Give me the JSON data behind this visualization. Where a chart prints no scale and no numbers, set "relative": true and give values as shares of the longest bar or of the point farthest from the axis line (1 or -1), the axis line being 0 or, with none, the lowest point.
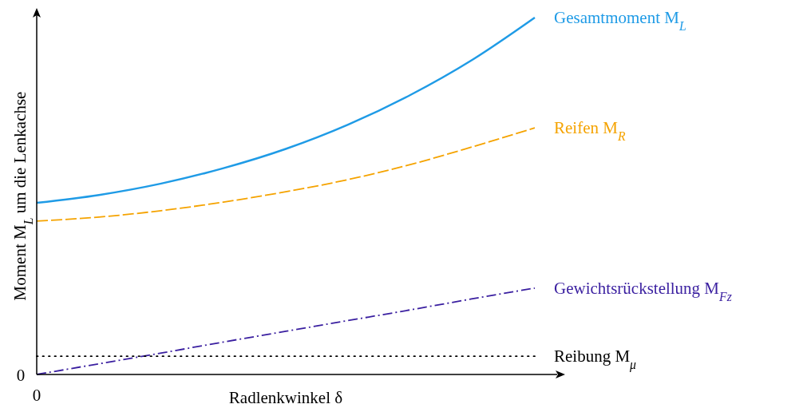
{
  "chart_data": {
    "type": "line",
    "relative": true,
    "xlabel": "Radlenkwinkel δ",
    "ylabel": "Moment M$_{L}$ um die Lenkachse",
    "categories": [
      null,
      null,
      null,
      null,
      null,
      null,
      null,
      null,
      null
    ],
    "annotations": [
      "0",
      "0"
    ],
    "series": [
      {
        "name": "Gesamtmoment M$_{L}$",
        "color": "#1f9be6",
        "line_style": "solid",
        "values": [
          0.481,
          0.503,
          0.535,
          0.578,
          0.632,
          0.7,
          0.783,
          0.882,
          1
        ]
      },
      {
        "name": "Reifen M$_{R}$",
        "color": "#f5a300",
        "line_style": "dashed",
        "values": [
          0.43,
          0.441,
          0.459,
          0.483,
          0.512,
          0.546,
          0.588,
          0.638,
          0.691
        ]
      },
      {
        "name": "Gewichtsrückstellung M$_{Fz}$",
        "color": "#3a1fa0",
        "line_style": "dashdot",
        "values": [
          0,
          0.03,
          0.06,
          0.091,
          0.121,
          0.151,
          0.181,
          0.212,
          0.242
        ]
      },
      {
        "name": "Reibung M$_{μ}$",
        "color": "#000000",
        "line_style": "dotted",
        "values": [
          0.051,
          0.051,
          0.051,
          0.051,
          0.051,
          0.051,
          0.051,
          0.051,
          0.051
        ]
      }
    ],
    "marker": "none"
  }
}
